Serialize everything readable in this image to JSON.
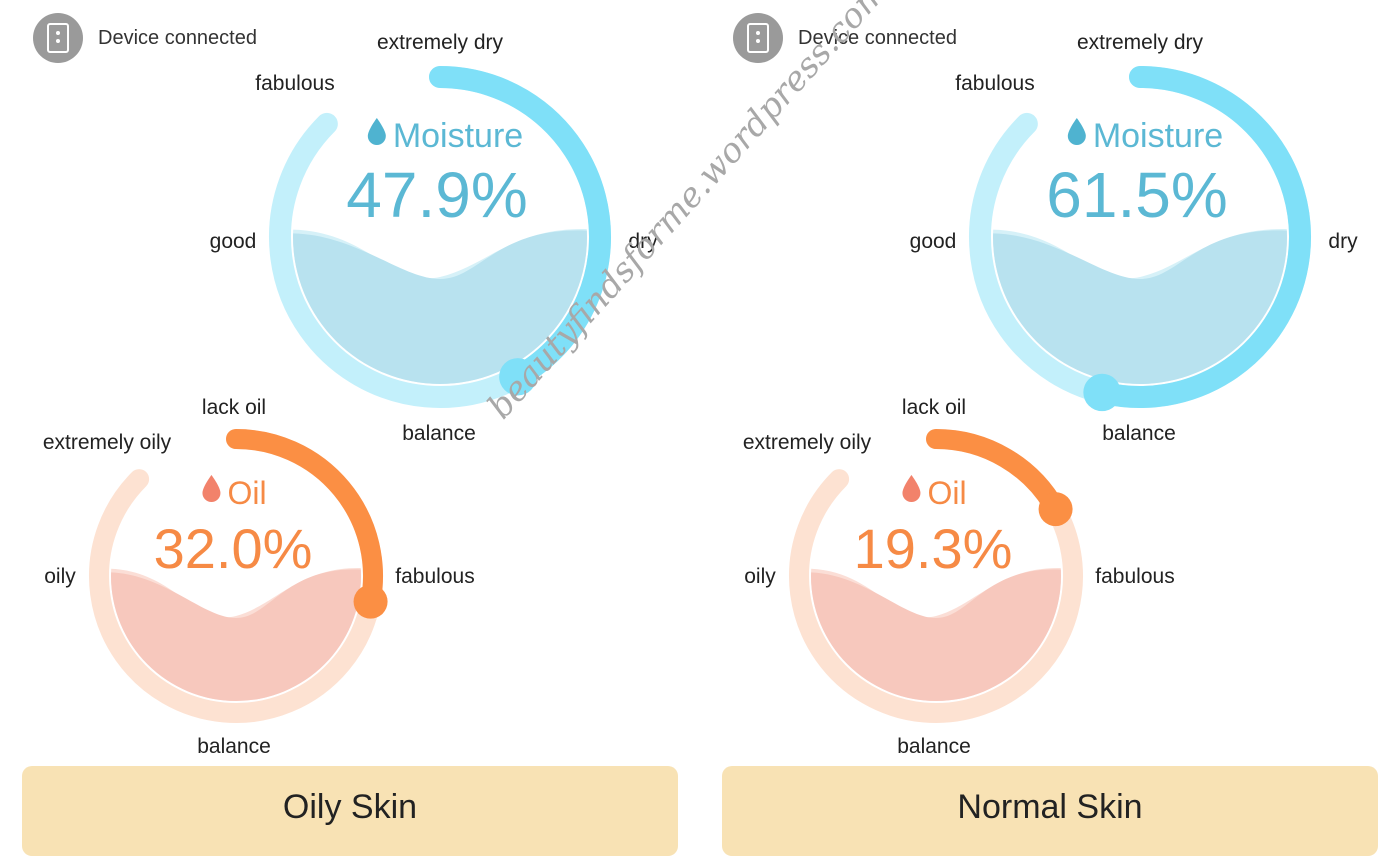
{
  "panels": [
    {
      "status_text": "Device connected",
      "moisture": {
        "title": "Moisture",
        "percent": "47.9%",
        "value": 47.9,
        "labels": {
          "extremely_dry": "extremely dry",
          "fabulous": "fabulous",
          "good": "good",
          "dry": "dry",
          "balance": "balance"
        }
      },
      "oil": {
        "title": "Oil",
        "percent": "32.0%",
        "value": 32.0,
        "labels": {
          "lack_oil": "lack oil",
          "extremely_oily": "extremely oily",
          "oily": "oily",
          "fabulous": "fabulous",
          "balance": "balance"
        }
      },
      "result": "Oily Skin"
    },
    {
      "status_text": "Device connected",
      "moisture": {
        "title": "Moisture",
        "percent": "61.5%",
        "value": 61.5,
        "labels": {
          "extremely_dry": "extremely dry",
          "fabulous": "fabulous",
          "good": "good",
          "dry": "dry",
          "balance": "balance"
        }
      },
      "oil": {
        "title": "Oil",
        "percent": "19.3%",
        "value": 19.3,
        "labels": {
          "lack_oil": "lack oil",
          "extremely_oily": "extremely oily",
          "oily": "oily",
          "fabulous": "fabulous",
          "balance": "balance"
        }
      },
      "result": "Normal Skin"
    }
  ],
  "watermark": "beautyfindsforme.wordpress.com",
  "colors": {
    "moisture_track": "#c3f0fb",
    "moisture_arc": "#7fe0f8",
    "moisture_water": "#b8e2ef",
    "moisture_water_light": "#d6f1f8",
    "moisture_text": "#5bb8d4",
    "moisture_drop": "#4fb3d0",
    "oil_track": "#fde2d2",
    "oil_arc": "#fb8f44",
    "oil_water": "#f7c8bd",
    "oil_water_light": "#fbded6",
    "oil_text": "#f68a45",
    "oil_drop": "#f2826b",
    "result_bg": "#f8e2b4",
    "status_icon": "#9a9a9a"
  }
}
